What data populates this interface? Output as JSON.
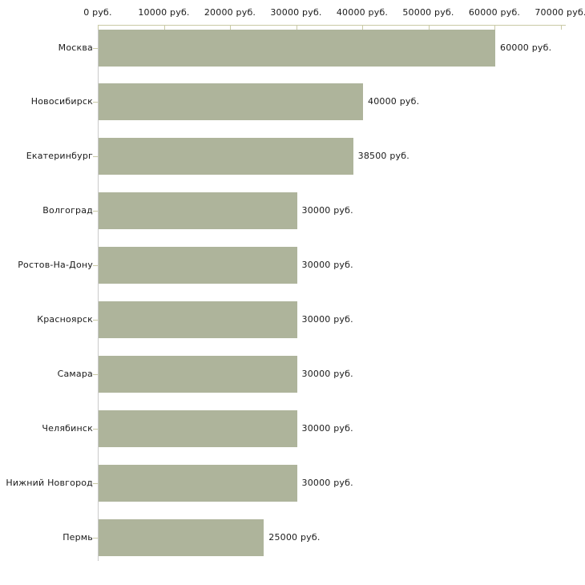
{
  "chart_data": {
    "type": "bar",
    "orientation": "horizontal",
    "title": "",
    "xlabel": "",
    "ylabel": "",
    "unit": "руб.",
    "categories": [
      "Москва",
      "Новосибирск",
      "Екатеринбург",
      "Волгоград",
      "Ростов-На-Дону",
      "Красноярск",
      "Самара",
      "Челябинск",
      "Нижний Новгород",
      "Пермь"
    ],
    "values": [
      60000,
      40000,
      38500,
      30000,
      30000,
      30000,
      30000,
      30000,
      30000,
      25000
    ],
    "value_labels": [
      "60000 руб.",
      "40000 руб.",
      "38500 руб.",
      "30000 руб.",
      "30000 руб.",
      "30000 руб.",
      "30000 руб.",
      "30000 руб.",
      "30000 руб.",
      "25000 руб."
    ],
    "xlim": [
      0,
      70000
    ],
    "x_ticks": [
      0,
      10000,
      20000,
      30000,
      40000,
      50000,
      60000,
      70000
    ],
    "x_tick_labels": [
      "0 руб.",
      "10000 руб.",
      "20000 руб.",
      "30000 руб.",
      "40000 руб.",
      "50000 руб.",
      "60000 руб.",
      "70000 руб."
    ],
    "axis_position": "top",
    "grid": false,
    "legend": null,
    "colors": {
      "bar": "#aeb49b",
      "axis_and_ticks": "#c9c9a5",
      "baseline": "#c9c9c9",
      "text": "#1a1a1a",
      "background": "#ffffff"
    }
  }
}
